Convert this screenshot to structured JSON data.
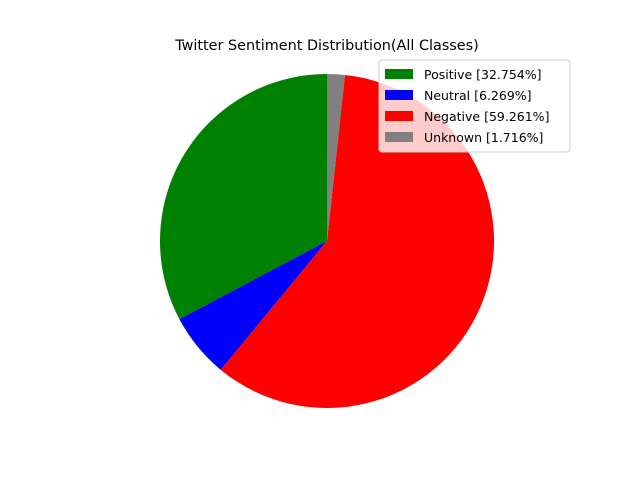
{
  "chart_data": {
    "type": "pie",
    "title": "Twitter Sentiment Distribution(All Classes)",
    "start_angle_deg": 90,
    "direction": "counterclockwise",
    "legend_position": "top-right",
    "slices": [
      {
        "label": "Positive [32.754%]",
        "value": 32.754,
        "color": "#008000"
      },
      {
        "label": "Neutral [6.269%]",
        "value": 6.269,
        "color": "#0000ff"
      },
      {
        "label": "Negative [59.261%]",
        "value": 59.261,
        "color": "#ff0000"
      },
      {
        "label": "Unknown [1.716%]",
        "value": 1.716,
        "color": "#808080"
      }
    ]
  }
}
